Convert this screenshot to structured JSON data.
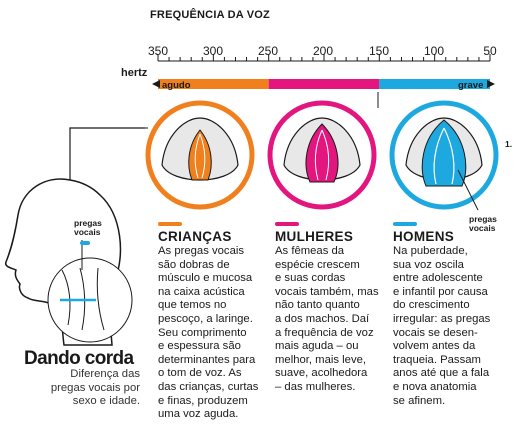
{
  "scale": {
    "title": "FREQUÊNCIA DA VOZ",
    "unit": "hertz",
    "ticks": [
      "350",
      "300",
      "250",
      "200",
      "150",
      "100",
      "50"
    ],
    "band_left_label": "agudo",
    "band_right_label": "grave",
    "bands": [
      {
        "from": 350,
        "to": 250,
        "color": "#f07f1e"
      },
      {
        "from": 250,
        "to": 150,
        "color": "#e3157f"
      },
      {
        "from": 150,
        "to": 50,
        "color": "#1ea8e0"
      }
    ]
  },
  "groups": [
    {
      "title": "CRIANÇAS",
      "color": "#f07f1e",
      "text": "As pregas vocais\nsão dobras de\nmúsculo e mucosa\nna caixa acústica\nque temos no\npescoço, a laringe.\nSeu comprimento\ne espessura são\ndeterminantes para\no tom de voz. As\ndas crianças, curtas\ne finas, produzem\numa voz aguda."
    },
    {
      "title": "MULHERES",
      "color": "#e3157f",
      "text": "As fêmeas da\nespécie crescem\ne suas cordas\nvocais também, mas\nnão tanto quanto\na dos machos. Daí\na frequência de voz\nmais aguda – ou\nmelhor, mais leve,\nsuave, acolhedora\n– das mulheres."
    },
    {
      "title": "HOMENS",
      "color": "#1ea8e0",
      "text": "Na puberdade,\nsua voz oscila\nentre adolescente\ne infantil por causa\ndo crescimento\nirregular: as pregas\nvocais se desen-\nvolvem antes da\ntraqueia. Passam\nanos até que a fala\ne nova anatomia\nse afinem."
    }
  ],
  "labels": {
    "pregas_vocais_left": "pregas\nvocais",
    "pregas_vocais_right": "pregas\nvocais",
    "note_marker": "1."
  },
  "title": "Dando corda",
  "subtitle": "Diferença das\npregas vocais por\nsexo e idade."
}
